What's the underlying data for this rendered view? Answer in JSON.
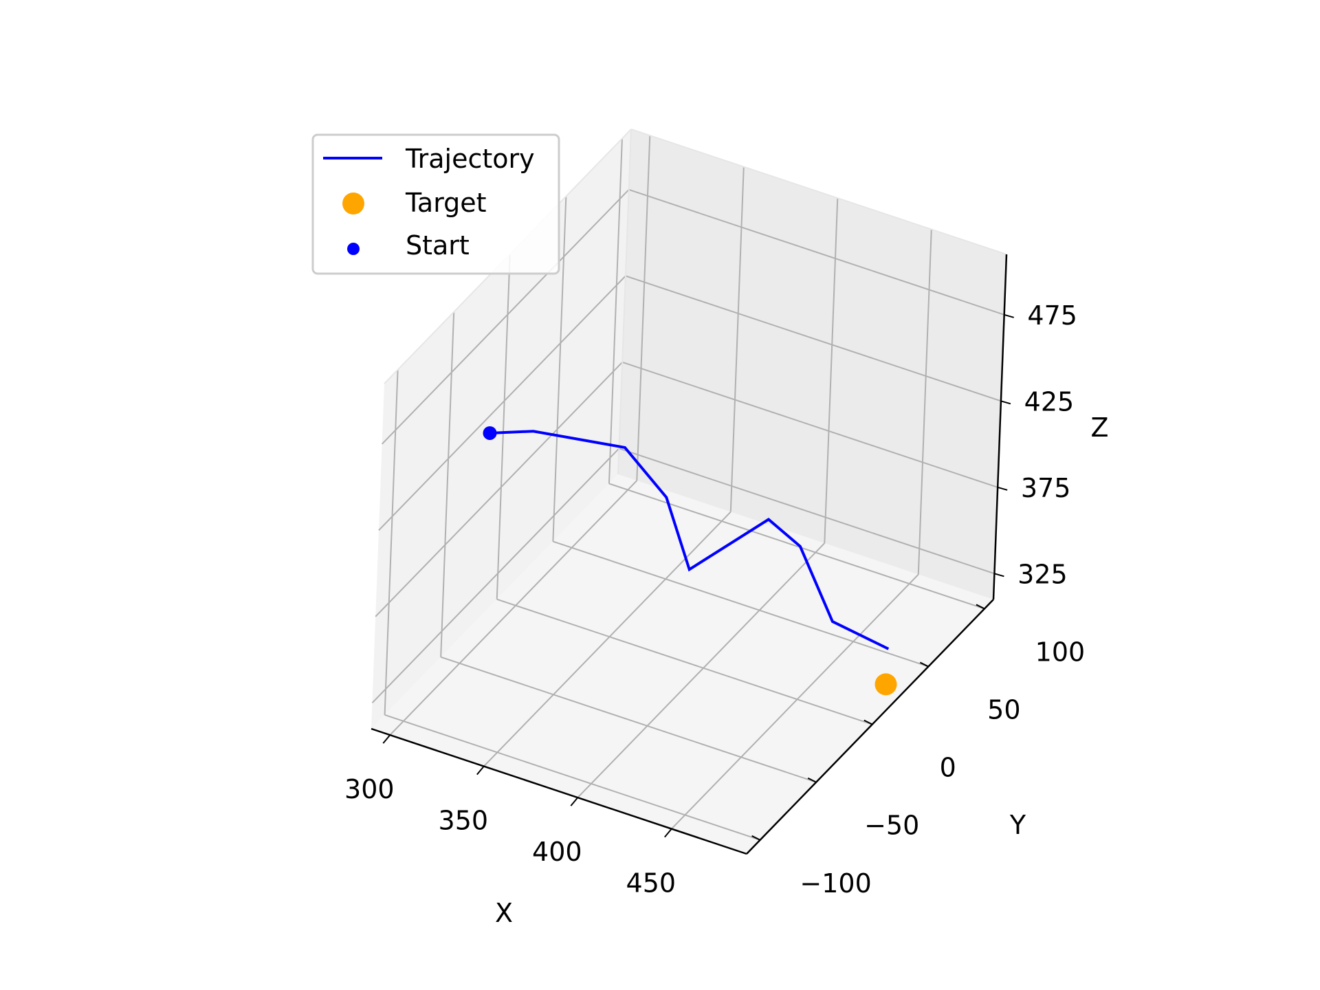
{
  "chart_data": {
    "type": "line",
    "projection": "3d",
    "title": "",
    "xlabel": "X",
    "ylabel": "Y",
    "zlabel": "Z",
    "xlim": [
      290,
      490
    ],
    "ylim": [
      -112,
      108
    ],
    "zlim": [
      310,
      510
    ],
    "xticks": [
      300,
      350,
      400,
      450
    ],
    "yticks": [
      -100,
      -50,
      0,
      50,
      100
    ],
    "zticks": [
      325,
      375,
      425,
      475
    ],
    "xtick_labels": [
      "300",
      "350",
      "400",
      "450"
    ],
    "ytick_labels": [
      "−100",
      "−50",
      "0",
      "50",
      "100"
    ],
    "ztick_labels": [
      "325",
      "375",
      "425",
      "475"
    ],
    "grid": true,
    "legend_position": "top-left",
    "series": [
      {
        "name": "Trajectory",
        "kind": "line",
        "color": "#0000ff",
        "points": [
          {
            "x": 300,
            "y": -30,
            "z": 430
          },
          {
            "x": 320,
            "y": -25,
            "z": 435
          },
          {
            "x": 360,
            "y": -10,
            "z": 430
          },
          {
            "x": 380,
            "y": -5,
            "z": 405
          },
          {
            "x": 385,
            "y": 10,
            "z": 355
          },
          {
            "x": 420,
            "y": 20,
            "z": 390
          },
          {
            "x": 440,
            "y": 15,
            "z": 385
          },
          {
            "x": 450,
            "y": 30,
            "z": 335
          },
          {
            "x": 480,
            "y": 30,
            "z": 330
          }
        ]
      },
      {
        "name": "Target",
        "kind": "scatter",
        "color": "#ffa500",
        "points": [
          {
            "x": 485,
            "y": 20,
            "z": 318
          }
        ]
      },
      {
        "name": "Start",
        "kind": "scatter",
        "color": "#0000ff",
        "points": [
          {
            "x": 300,
            "y": -30,
            "z": 430
          }
        ]
      }
    ]
  },
  "legend": {
    "items": [
      {
        "label": "Trajectory",
        "marker": "line",
        "color": "#0000ff"
      },
      {
        "label": "Target",
        "marker": "dot-large",
        "color": "#ffa500"
      },
      {
        "label": "Start",
        "marker": "dot-small",
        "color": "#0000ff"
      }
    ]
  }
}
